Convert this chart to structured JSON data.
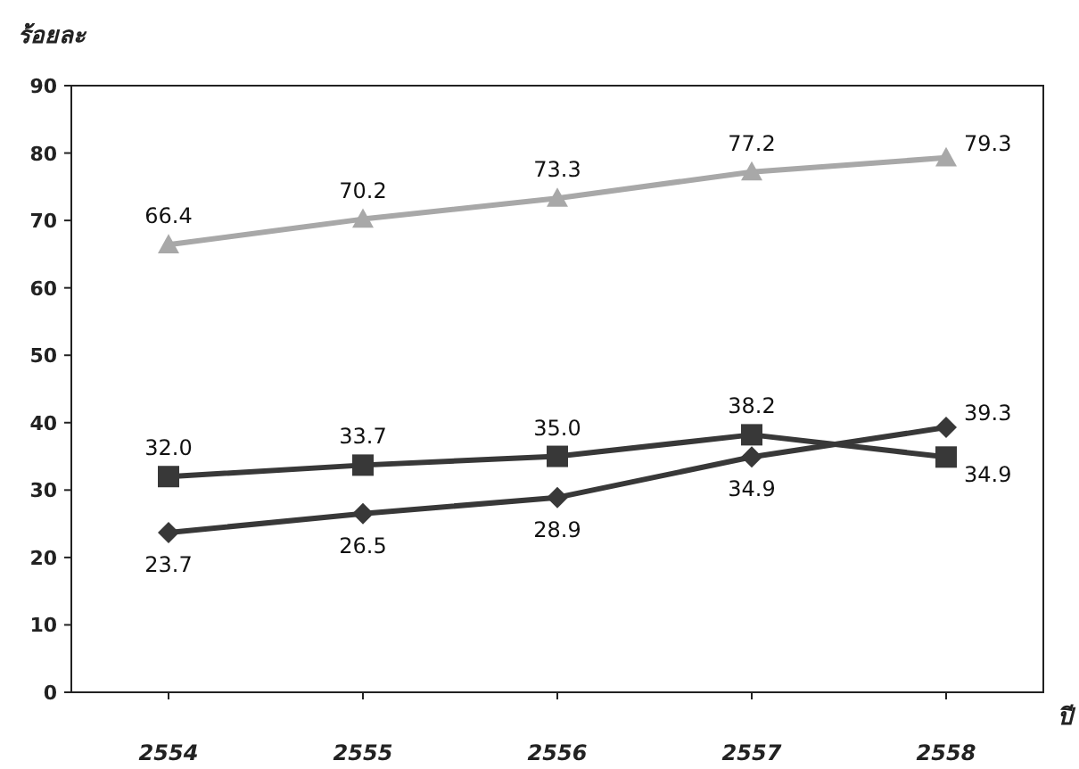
{
  "chart_data": {
    "type": "line",
    "ylabel": "ร้อยละ",
    "xlabel": "ปี",
    "categories": [
      "2554",
      "2555",
      "2556",
      "2557",
      "2558"
    ],
    "series": [
      {
        "color": "#a8a8a8",
        "marker": "triangle",
        "values": [
          66.4,
          70.2,
          73.3,
          77.2,
          79.3
        ],
        "value_labels": [
          "66.4",
          "70.2",
          "73.3",
          "77.2",
          "79.3"
        ]
      },
      {
        "color": "#383838",
        "marker": "square",
        "values": [
          32.0,
          33.7,
          35.0,
          38.2,
          34.9
        ],
        "value_labels": [
          "32.0",
          "33.7",
          "35.0",
          "38.2",
          "34.9"
        ]
      },
      {
        "color": "#383838",
        "marker": "diamond",
        "values": [
          23.7,
          26.5,
          28.9,
          34.9,
          39.3
        ],
        "value_labels": [
          "23.7",
          "26.5",
          "28.9",
          "34.9",
          "39.3"
        ]
      }
    ],
    "ylim": [
      0,
      90
    ],
    "yticks": [
      0,
      10,
      20,
      30,
      40,
      50,
      60,
      70,
      80,
      90
    ]
  }
}
